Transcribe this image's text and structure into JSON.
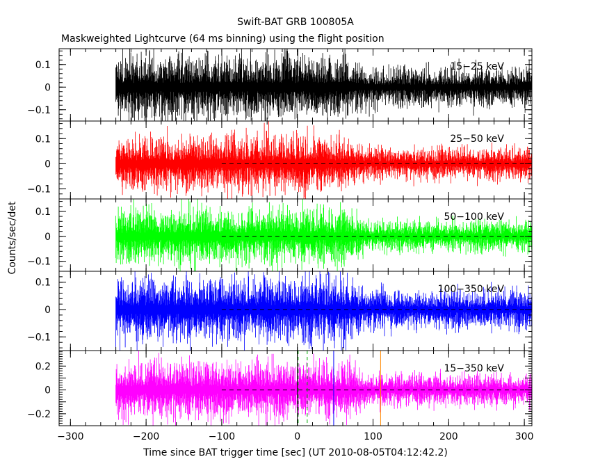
{
  "chart_data": {
    "type": "line",
    "title": "Swift-BAT GRB 100805A",
    "subtitle": "Maskweighted Lightcurve (64 ms binning) using the flight position",
    "xlabel": "Time since BAT trigger time [sec] (UT 2010-08-05T04:12:42.2)",
    "ylabel": "Counts/sec/det",
    "xlim": [
      -315,
      310
    ],
    "x_ticks": [
      -300,
      -200,
      -100,
      0,
      100,
      200,
      300
    ],
    "x_tick_labels": [
      "−300",
      "−200",
      "−100",
      "0",
      "100",
      "200",
      "300"
    ],
    "data_start": -240,
    "data_end": 310,
    "grid": false,
    "panels": [
      {
        "name": "15−25 keV",
        "color": "#000000",
        "ylim": [
          -0.15,
          0.17
        ],
        "y_ticks": [
          -0.1,
          0,
          0.1
        ],
        "y_tick_labels": [
          "−0.1",
          "0",
          "0.1"
        ],
        "noise_before": 0.09,
        "noise_after": 0.055,
        "dashed_zero": false
      },
      {
        "name": "25−50 keV",
        "color": "#ff0000",
        "ylim": [
          -0.14,
          0.17
        ],
        "y_ticks": [
          -0.1,
          0,
          0.1
        ],
        "y_tick_labels": [
          "−0.1",
          "0",
          "0.1"
        ],
        "noise_before": 0.07,
        "noise_after": 0.04,
        "dashed_zero": true
      },
      {
        "name": "50−100 keV",
        "color": "#00ff00",
        "ylim": [
          -0.14,
          0.15
        ],
        "y_ticks": [
          -0.1,
          0,
          0.1
        ],
        "y_tick_labels": [
          "−0.1",
          "0",
          "0.1"
        ],
        "noise_before": 0.07,
        "noise_after": 0.04,
        "dashed_zero": true
      },
      {
        "name": "100−350 keV",
        "color": "#0000ff",
        "ylim": [
          -0.15,
          0.14
        ],
        "y_ticks": [
          -0.1,
          0,
          0.1
        ],
        "y_tick_labels": [
          "−0.1",
          "0",
          "0.1"
        ],
        "noise_before": 0.075,
        "noise_after": 0.045,
        "dashed_zero": true
      },
      {
        "name": "15−350 keV",
        "color": "#ff00ff",
        "ylim": [
          -0.3,
          0.33
        ],
        "y_ticks": [
          -0.2,
          -0.1,
          0,
          0.1,
          0.2
        ],
        "y_tick_labels": [
          "−0.2",
          "−0.1",
          "0",
          "0.1",
          "0.2"
        ],
        "noise_before": 0.15,
        "noise_after": 0.085,
        "dashed_zero": true
      }
    ],
    "transition_time": 65,
    "vertical_markers": [
      {
        "x": 0,
        "color": "#000000",
        "style": "solid"
      },
      {
        "x": 1,
        "color": "#00aa00",
        "style": "dashed"
      },
      {
        "x": 13,
        "color": "#00aa00",
        "style": "dashed"
      },
      {
        "x": 48,
        "color": "#0000ff",
        "style": "solid"
      },
      {
        "x": 110,
        "color": "#ff8800",
        "style": "solid"
      }
    ]
  }
}
